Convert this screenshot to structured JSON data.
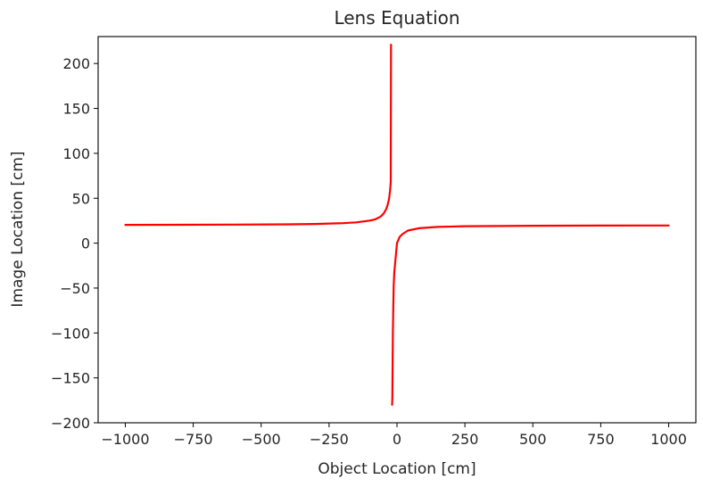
{
  "chart_data": {
    "type": "line",
    "title": "Lens Equation",
    "xlabel": "Object Location [cm]",
    "ylabel": "Image Location [cm]",
    "xlim": [
      -1100,
      1100
    ],
    "ylim": [
      -200,
      230
    ],
    "xticks": [
      -1000,
      -750,
      -500,
      -250,
      0,
      250,
      500,
      750,
      1000
    ],
    "xtick_labels": [
      "−1000",
      "−750",
      "−500",
      "−250",
      "0",
      "250",
      "500",
      "750",
      "1000"
    ],
    "yticks": [
      -200,
      -150,
      -100,
      -50,
      0,
      50,
      100,
      150,
      200
    ],
    "ytick_labels": [
      "−200",
      "−150",
      "−100",
      "−50",
      "0",
      "50",
      "100",
      "150",
      "200"
    ],
    "grid": false,
    "legend": "none",
    "series": [
      {
        "color": "#ff0000",
        "segments": [
          {
            "x": [
              -1000,
              -800,
              -600,
              -400,
              -300,
              -200,
              -150,
              -100,
              -80,
              -60,
              -50,
              -40,
              -35,
              -30,
              -28,
              -26,
              -24,
              -23,
              -22
            ],
            "y": [
              20.4,
              20.5,
              20.7,
              21.0,
              21.4,
              22.2,
              23.1,
              25.1,
              26.5,
              29.6,
              32.7,
              37.6,
              41.9,
              48.3,
              52.4,
              57.6,
              64.1,
              68.6,
              221
            ]
          },
          {
            "x": [
              -18,
              -17,
              -16,
              -15,
              -12,
              -10,
              0,
              10,
              20,
              40,
              80,
              150,
              250,
              500,
              750,
              1000
            ],
            "y": [
              -180,
              -172,
              -133,
              -98,
              -47,
              -32,
              0,
              7,
              10,
              14,
              16.6,
              18.1,
              18.9,
              19.4,
              19.6,
              19.7
            ]
          }
        ]
      }
    ]
  }
}
